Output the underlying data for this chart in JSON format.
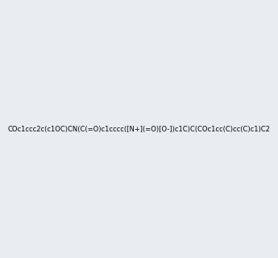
{
  "smiles": "COc1ccc2c(c1OC)CN(C(=O)c1cccc([N+](=O)[O-])c1C)C(COc1cc(C)cc(C)c1)C2",
  "image_size": 300,
  "background_color": "#e8eef0",
  "bond_color": "#2d6b6b",
  "atom_colors": {
    "N": "#0000cc",
    "O": "#cc0000",
    "N+": "#0000cc",
    "O-": "#cc0000"
  }
}
